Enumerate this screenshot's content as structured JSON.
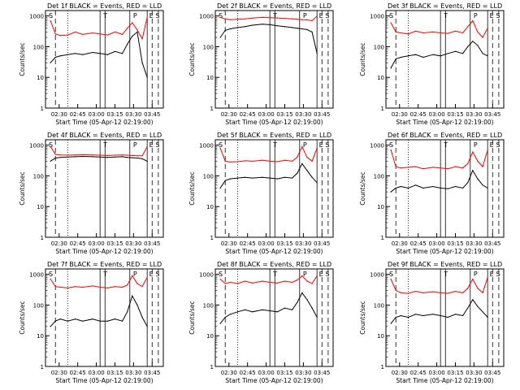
{
  "figure": {
    "ylabel": "Counts/sec",
    "xlabel": "Start Time (05-Apr-12 02:19:00)",
    "x_ticks": [
      "02:30",
      "02:45",
      "03:00",
      "03:15",
      "03:30",
      "03:45"
    ],
    "y_ticks": [
      "1",
      "10",
      "100",
      "1000"
    ],
    "colors": {
      "events": "#000000",
      "lld": "#ff0000",
      "axes": "#000000"
    }
  },
  "chart_data": [
    {
      "type": "line",
      "title": "Det 1f BLACK = Events, RED = LLD",
      "ylim": [
        1,
        1500
      ],
      "yscale": "log",
      "xlim_minutes": [
        0,
        95
      ],
      "x_minutes": [
        4,
        8,
        12,
        18,
        24,
        30,
        38,
        44,
        50,
        56,
        62,
        66,
        70,
        74,
        78,
        82
      ],
      "series": [
        {
          "name": "Events",
          "color": "#000000",
          "values": [
            30,
            45,
            50,
            55,
            60,
            55,
            65,
            60,
            55,
            70,
            60,
            120,
            220,
            300,
            30,
            10
          ]
        },
        {
          "name": "LLD",
          "color": "#ff0000",
          "values": [
            700,
            260,
            230,
            240,
            300,
            250,
            280,
            260,
            240,
            300,
            250,
            400,
            600,
            350,
            180,
            900
          ]
        }
      ],
      "markers": [
        {
          "label": "S",
          "minute": 2
        },
        {
          "label": "T",
          "minute": 46
        },
        {
          "label": "P",
          "minute": 70
        },
        {
          "label": "E",
          "minute": 83
        },
        {
          "label": "S",
          "minute": 88
        }
      ]
    },
    {
      "type": "line",
      "title": "Det 2f BLACK = Events, RED = LLD",
      "ylim": [
        1,
        1500
      ],
      "yscale": "log",
      "xlim_minutes": [
        0,
        95
      ],
      "x_minutes": [
        4,
        8,
        12,
        18,
        24,
        30,
        38,
        44,
        50,
        56,
        62,
        66,
        70,
        74,
        78,
        82
      ],
      "series": [
        {
          "name": "Events",
          "color": "#000000",
          "values": [
            200,
            340,
            380,
            420,
            450,
            500,
            540,
            520,
            480,
            450,
            420,
            400,
            380,
            360,
            300,
            60
          ]
        },
        {
          "name": "LLD",
          "color": "#ff0000",
          "values": [
            900,
            800,
            760,
            780,
            800,
            850,
            900,
            880,
            860,
            830,
            800,
            780,
            760,
            750,
            700,
            1000
          ]
        }
      ],
      "markers": [
        {
          "label": "S",
          "minute": 2
        },
        {
          "label": "T",
          "minute": 46
        },
        {
          "label": "P",
          "minute": 70
        },
        {
          "label": "E",
          "minute": 83
        },
        {
          "label": "S",
          "minute": 88
        }
      ]
    },
    {
      "type": "line",
      "title": "Det 3f BLACK = Events, RED = LLD",
      "ylim": [
        1,
        1500
      ],
      "yscale": "log",
      "xlim_minutes": [
        0,
        95
      ],
      "x_minutes": [
        4,
        8,
        12,
        18,
        24,
        30,
        38,
        44,
        50,
        56,
        62,
        66,
        70,
        74,
        78,
        82
      ],
      "series": [
        {
          "name": "Events",
          "color": "#000000",
          "values": [
            20,
            40,
            45,
            50,
            55,
            45,
            55,
            50,
            60,
            70,
            60,
            100,
            150,
            110,
            60,
            50
          ]
        },
        {
          "name": "LLD",
          "color": "#ff0000",
          "values": [
            600,
            300,
            280,
            260,
            320,
            280,
            300,
            280,
            270,
            320,
            280,
            450,
            700,
            300,
            200,
            400
          ]
        }
      ],
      "markers": [
        {
          "label": "S",
          "minute": 2
        },
        {
          "label": "T",
          "minute": 46
        },
        {
          "label": "P",
          "minute": 70
        },
        {
          "label": "E",
          "minute": 83
        },
        {
          "label": "S",
          "minute": 88
        }
      ]
    },
    {
      "type": "line",
      "title": "Det 4f BLACK = Events, RED = LLD",
      "ylim": [
        1,
        1500
      ],
      "yscale": "log",
      "xlim_minutes": [
        0,
        95
      ],
      "x_minutes": [
        4,
        8,
        12,
        18,
        24,
        30,
        38,
        44,
        50,
        56,
        62,
        66,
        70,
        74,
        78,
        82
      ],
      "series": [
        {
          "name": "Events",
          "color": "#000000",
          "values": [
            300,
            380,
            400,
            410,
            420,
            430,
            420,
            410,
            400,
            410,
            420,
            400,
            390,
            380,
            360,
            300
          ]
        },
        {
          "name": "LLD",
          "color": "#ff0000",
          "values": [
            900,
            500,
            480,
            470,
            480,
            490,
            480,
            470,
            460,
            470,
            480,
            470,
            460,
            450,
            450,
            900
          ]
        }
      ],
      "markers": [
        {
          "label": "S",
          "minute": 2
        },
        {
          "label": "T",
          "minute": 46
        },
        {
          "label": "P",
          "minute": 70
        },
        {
          "label": "E",
          "minute": 83
        },
        {
          "label": "S",
          "minute": 88
        }
      ]
    },
    {
      "type": "line",
      "title": "Det 5f BLACK = Events, RED = LLD",
      "ylim": [
        1,
        1500
      ],
      "yscale": "log",
      "xlim_minutes": [
        0,
        95
      ],
      "x_minutes": [
        4,
        8,
        12,
        18,
        24,
        30,
        38,
        44,
        50,
        56,
        62,
        66,
        70,
        74,
        78,
        82
      ],
      "series": [
        {
          "name": "Events",
          "color": "#000000",
          "values": [
            40,
            70,
            80,
            85,
            90,
            85,
            90,
            85,
            80,
            90,
            85,
            120,
            250,
            150,
            90,
            60
          ]
        },
        {
          "name": "LLD",
          "color": "#ff0000",
          "values": [
            800,
            300,
            280,
            290,
            310,
            300,
            320,
            300,
            290,
            320,
            300,
            400,
            900,
            400,
            300,
            800
          ]
        }
      ],
      "markers": [
        {
          "label": "S",
          "minute": 2
        },
        {
          "label": "T",
          "minute": 46
        },
        {
          "label": "P",
          "minute": 70
        },
        {
          "label": "E",
          "minute": 83
        },
        {
          "label": "S",
          "minute": 88
        }
      ]
    },
    {
      "type": "line",
      "title": "Det 6f BLACK = Events, RED = LLD",
      "ylim": [
        1,
        1500
      ],
      "yscale": "log",
      "xlim_minutes": [
        0,
        95
      ],
      "x_minutes": [
        4,
        8,
        12,
        18,
        24,
        30,
        38,
        44,
        50,
        56,
        62,
        66,
        70,
        74,
        78,
        82
      ],
      "series": [
        {
          "name": "Events",
          "color": "#000000",
          "values": [
            30,
            40,
            45,
            40,
            50,
            40,
            45,
            40,
            38,
            45,
            40,
            60,
            150,
            80,
            50,
            40
          ]
        },
        {
          "name": "LLD",
          "color": "#ff0000",
          "values": [
            700,
            200,
            180,
            190,
            200,
            170,
            190,
            180,
            170,
            200,
            180,
            250,
            600,
            300,
            200,
            700
          ]
        }
      ],
      "markers": [
        {
          "label": "S",
          "minute": 2
        },
        {
          "label": "T",
          "minute": 46
        },
        {
          "label": "P",
          "minute": 70
        },
        {
          "label": "E",
          "minute": 83
        },
        {
          "label": "S",
          "minute": 88
        }
      ]
    },
    {
      "type": "line",
      "title": "Det 7f BLACK = Events, RED = LLD",
      "ylim": [
        1,
        1500
      ],
      "yscale": "log",
      "xlim_minutes": [
        0,
        95
      ],
      "x_minutes": [
        4,
        8,
        12,
        18,
        24,
        30,
        38,
        44,
        50,
        56,
        62,
        66,
        70,
        74,
        78,
        82
      ],
      "series": [
        {
          "name": "Events",
          "color": "#000000",
          "values": [
            20,
            30,
            35,
            30,
            35,
            30,
            35,
            30,
            30,
            35,
            30,
            60,
            200,
            100,
            40,
            20
          ]
        },
        {
          "name": "LLD",
          "color": "#ff0000",
          "values": [
            700,
            400,
            380,
            360,
            400,
            380,
            420,
            380,
            360,
            400,
            380,
            450,
            900,
            500,
            400,
            800
          ]
        }
      ],
      "markers": [
        {
          "label": "S",
          "minute": 2
        },
        {
          "label": "T",
          "minute": 46
        },
        {
          "label": "P",
          "minute": 70
        },
        {
          "label": "E",
          "minute": 83
        },
        {
          "label": "S",
          "minute": 88
        }
      ]
    },
    {
      "type": "line",
      "title": "Det 8f BLACK = Events, RED = LLD",
      "ylim": [
        1,
        1500
      ],
      "yscale": "log",
      "xlim_minutes": [
        0,
        95
      ],
      "x_minutes": [
        4,
        8,
        12,
        18,
        24,
        30,
        38,
        44,
        50,
        56,
        62,
        66,
        70,
        74,
        78,
        82
      ],
      "series": [
        {
          "name": "Events",
          "color": "#000000",
          "values": [
            25,
            40,
            50,
            60,
            70,
            60,
            70,
            65,
            60,
            80,
            70,
            120,
            250,
            150,
            80,
            40
          ]
        },
        {
          "name": "LLD",
          "color": "#ff0000",
          "values": [
            700,
            500,
            550,
            500,
            600,
            520,
            600,
            550,
            520,
            600,
            550,
            650,
            900,
            600,
            500,
            900
          ]
        }
      ],
      "markers": [
        {
          "label": "S",
          "minute": 2
        },
        {
          "label": "T",
          "minute": 46
        },
        {
          "label": "P",
          "minute": 70
        },
        {
          "label": "E",
          "minute": 83
        },
        {
          "label": "S",
          "minute": 88
        }
      ]
    },
    {
      "type": "line",
      "title": "Det 9f BLACK = Events, RED = LLD",
      "ylim": [
        1,
        1500
      ],
      "yscale": "log",
      "xlim_minutes": [
        0,
        95
      ],
      "x_minutes": [
        4,
        8,
        12,
        18,
        24,
        30,
        38,
        44,
        50,
        56,
        62,
        66,
        70,
        74,
        78,
        82
      ],
      "series": [
        {
          "name": "Events",
          "color": "#000000",
          "values": [
            25,
            40,
            45,
            40,
            50,
            45,
            50,
            45,
            40,
            50,
            45,
            80,
            150,
            90,
            60,
            40
          ]
        },
        {
          "name": "LLD",
          "color": "#ff0000",
          "values": [
            700,
            300,
            250,
            240,
            280,
            250,
            270,
            250,
            240,
            280,
            250,
            350,
            700,
            350,
            250,
            800
          ]
        }
      ],
      "markers": [
        {
          "label": "S",
          "minute": 2
        },
        {
          "label": "T",
          "minute": 46
        },
        {
          "label": "P",
          "minute": 70
        },
        {
          "label": "E",
          "minute": 83
        },
        {
          "label": "S",
          "minute": 88
        }
      ]
    }
  ]
}
